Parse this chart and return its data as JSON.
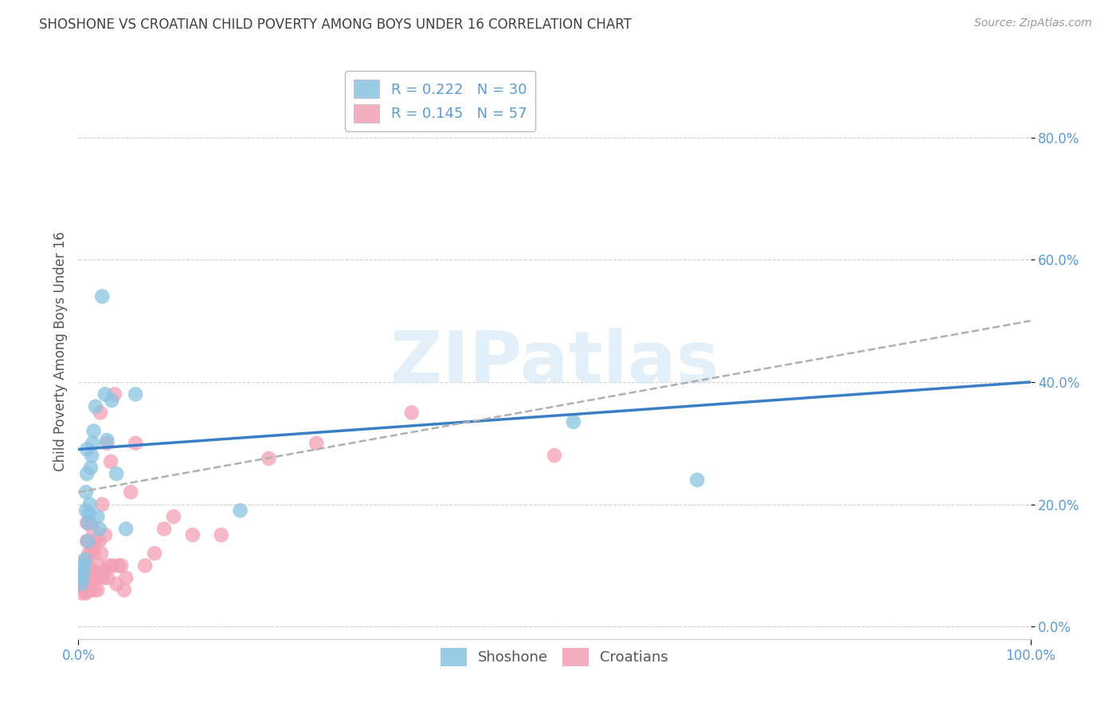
{
  "title": "SHOSHONE VS CROATIAN CHILD POVERTY AMONG BOYS UNDER 16 CORRELATION CHART",
  "source": "Source: ZipAtlas.com",
  "ylabel": "Child Poverty Among Boys Under 16",
  "watermark": "ZIPatlas",
  "shoshone_R": 0.222,
  "shoshone_N": 30,
  "croatian_R": 0.145,
  "croatian_N": 57,
  "shoshone_color": "#89c4e1",
  "croatian_color": "#f4a0b5",
  "shoshone_line_color": "#3a7ec8",
  "croatian_line_color": "#e8748a",
  "axis_label_color": "#5b9bd5",
  "grid_color": "#d0d0d0",
  "title_color": "#404040",
  "xlim": [
    0,
    1.0
  ],
  "ylim": [
    -0.02,
    0.92
  ],
  "yticks": [
    0.0,
    0.2,
    0.4,
    0.6,
    0.8
  ],
  "xtick_positions": [
    0.0,
    1.0
  ],
  "xtick_labels": [
    "0.0%",
    "100.0%"
  ],
  "shoshone_x": [
    0.003,
    0.004,
    0.005,
    0.006,
    0.007,
    0.008,
    0.008,
    0.009,
    0.009,
    0.01,
    0.01,
    0.011,
    0.012,
    0.013,
    0.014,
    0.015,
    0.016,
    0.018,
    0.02,
    0.022,
    0.025,
    0.028,
    0.03,
    0.035,
    0.04,
    0.05,
    0.06,
    0.17,
    0.52,
    0.65
  ],
  "shoshone_y": [
    0.07,
    0.08,
    0.09,
    0.1,
    0.11,
    0.19,
    0.22,
    0.25,
    0.29,
    0.14,
    0.17,
    0.185,
    0.2,
    0.26,
    0.28,
    0.3,
    0.32,
    0.36,
    0.18,
    0.16,
    0.54,
    0.38,
    0.305,
    0.37,
    0.25,
    0.16,
    0.38,
    0.19,
    0.335,
    0.24
  ],
  "croatian_x": [
    0.003,
    0.004,
    0.005,
    0.006,
    0.007,
    0.007,
    0.008,
    0.008,
    0.009,
    0.009,
    0.01,
    0.01,
    0.011,
    0.011,
    0.012,
    0.012,
    0.013,
    0.014,
    0.015,
    0.015,
    0.016,
    0.017,
    0.018,
    0.019,
    0.02,
    0.02,
    0.021,
    0.022,
    0.023,
    0.024,
    0.025,
    0.026,
    0.027,
    0.028,
    0.03,
    0.031,
    0.032,
    0.034,
    0.036,
    0.038,
    0.04,
    0.042,
    0.045,
    0.048,
    0.05,
    0.055,
    0.06,
    0.07,
    0.08,
    0.09,
    0.1,
    0.12,
    0.15,
    0.2,
    0.25,
    0.35,
    0.5
  ],
  "croatian_y": [
    0.07,
    0.055,
    0.065,
    0.075,
    0.08,
    0.1,
    0.11,
    0.055,
    0.14,
    0.17,
    0.06,
    0.08,
    0.12,
    0.14,
    0.06,
    0.17,
    0.095,
    0.125,
    0.16,
    0.09,
    0.12,
    0.06,
    0.14,
    0.08,
    0.06,
    0.08,
    0.1,
    0.14,
    0.35,
    0.12,
    0.2,
    0.08,
    0.09,
    0.15,
    0.3,
    0.08,
    0.1,
    0.27,
    0.1,
    0.38,
    0.07,
    0.1,
    0.1,
    0.06,
    0.08,
    0.22,
    0.3,
    0.1,
    0.12,
    0.16,
    0.18,
    0.15,
    0.15,
    0.275,
    0.3,
    0.35,
    0.28
  ]
}
